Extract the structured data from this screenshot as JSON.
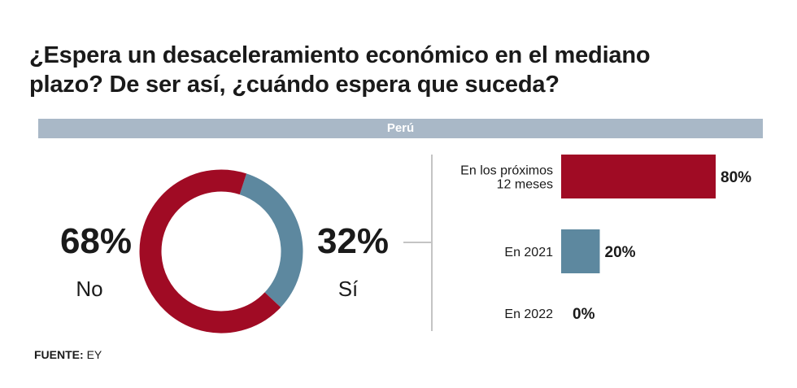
{
  "title": "¿Espera un desaceleramiento económico en el mediano plazo? De ser así, ¿cuándo espera que suceda?",
  "title_lines": [
    "¿Espera un desaceleramiento económico en el mediano",
    "plazo? De ser así, ¿cuándo espera que suceda?"
  ],
  "banner": "Perú",
  "source_label": "FUENTE:",
  "source_value": "EY",
  "colors": {
    "red": "#a00b24",
    "blue": "#5d889f",
    "banner": "#a9b8c7",
    "text": "#1a1a1a",
    "rule": "#888888"
  },
  "chart_data": [
    {
      "type": "pie",
      "variant": "donut",
      "categories": [
        "No",
        "Sí"
      ],
      "values": [
        68,
        32
      ],
      "value_labels": [
        "68%",
        "32%"
      ],
      "colors": [
        "#a00b24",
        "#5d889f"
      ]
    },
    {
      "type": "bar",
      "orientation": "horizontal",
      "categories": [
        "En los próximos 12 meses",
        "En 2021",
        "En 2022"
      ],
      "category_lines": [
        [
          "En los próximos",
          "12 meses"
        ],
        [
          "En 2021"
        ],
        [
          "En 2022"
        ]
      ],
      "values": [
        80,
        20,
        0
      ],
      "value_labels": [
        "80%",
        "20%",
        "0%"
      ],
      "colors": [
        "#a00b24",
        "#5d889f",
        "#5d889f"
      ],
      "xlim": [
        0,
        80
      ]
    }
  ]
}
